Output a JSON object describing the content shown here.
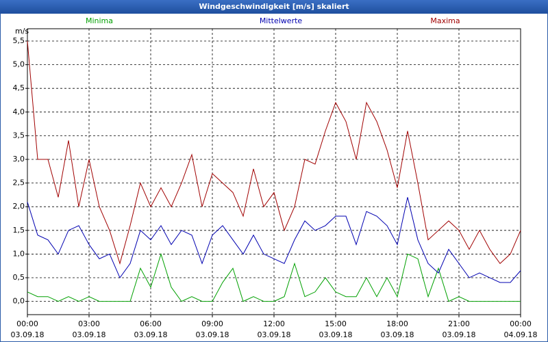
{
  "chart_data": {
    "type": "line",
    "title": "Windgeschwindigkeit [m/s] skaliert",
    "ylabel": "m/s",
    "x": [
      0,
      0.5,
      1,
      1.5,
      2,
      2.5,
      3,
      3.5,
      4,
      4.5,
      5,
      5.5,
      6,
      6.5,
      7,
      7.5,
      8,
      8.5,
      9,
      9.5,
      10,
      10.5,
      11,
      11.5,
      12,
      12.5,
      13,
      13.5,
      14,
      14.5,
      15,
      15.5,
      16,
      16.5,
      17,
      17.5,
      18,
      18.5,
      19,
      19.5,
      20,
      20.5,
      21,
      21.5,
      22,
      22.5,
      23,
      23.5,
      24
    ],
    "series": [
      {
        "name": "Minima",
        "color": "#00a000",
        "values": [
          0.2,
          0.1,
          0.1,
          0.0,
          0.1,
          0.0,
          0.1,
          0.0,
          0.0,
          0.0,
          0.0,
          0.7,
          0.3,
          1.0,
          0.3,
          0.0,
          0.1,
          0.0,
          0.0,
          0.4,
          0.7,
          0.0,
          0.1,
          0.0,
          0.0,
          0.1,
          0.8,
          0.1,
          0.2,
          0.5,
          0.2,
          0.1,
          0.1,
          0.5,
          0.1,
          0.5,
          0.1,
          1.0,
          0.9,
          0.1,
          0.7,
          0.0,
          0.1,
          0.0,
          0.0,
          0.0,
          0.0,
          0.0,
          0.0
        ]
      },
      {
        "name": "Mittelwerte",
        "color": "#0000b0",
        "values": [
          2.1,
          1.4,
          1.3,
          1.0,
          1.5,
          1.6,
          1.2,
          0.9,
          1.0,
          0.5,
          0.8,
          1.5,
          1.3,
          1.6,
          1.2,
          1.5,
          1.4,
          0.8,
          1.4,
          1.6,
          1.3,
          1.0,
          1.4,
          1.0,
          0.9,
          0.8,
          1.3,
          1.7,
          1.5,
          1.6,
          1.8,
          1.8,
          1.2,
          1.9,
          1.8,
          1.6,
          1.2,
          2.2,
          1.3,
          0.8,
          0.6,
          1.1,
          0.8,
          0.5,
          0.6,
          0.5,
          0.4,
          0.4,
          0.65
        ]
      },
      {
        "name": "Maxima",
        "color": "#a00000",
        "values": [
          5.5,
          3.0,
          3.0,
          2.2,
          3.4,
          2.0,
          3.0,
          2.0,
          1.5,
          0.8,
          1.6,
          2.5,
          2.0,
          2.4,
          2.0,
          2.5,
          3.1,
          2.0,
          2.7,
          2.5,
          2.3,
          1.8,
          2.8,
          2.0,
          2.3,
          1.5,
          2.0,
          3.0,
          2.9,
          3.6,
          4.2,
          3.8,
          3.0,
          4.2,
          3.8,
          3.2,
          2.4,
          3.6,
          2.5,
          1.3,
          1.5,
          1.7,
          1.5,
          1.1,
          1.5,
          1.1,
          0.8,
          1.0,
          1.5
        ]
      }
    ],
    "xlim": [
      0,
      24
    ],
    "xticks": [
      {
        "value": 0,
        "label": "00:00\n03.09.18"
      },
      {
        "value": 3,
        "label": "03:00\n03.09.18"
      },
      {
        "value": 6,
        "label": "06:00\n03.09.18"
      },
      {
        "value": 9,
        "label": "09:00\n03.09.18"
      },
      {
        "value": 12,
        "label": "12:00\n03.09.18"
      },
      {
        "value": 15,
        "label": "15:00\n03.09.18"
      },
      {
        "value": 18,
        "label": "18:00\n03.09.18"
      },
      {
        "value": 21,
        "label": "21:00\n03.09.18"
      },
      {
        "value": 24,
        "label": "00:00\n04.09.18"
      }
    ],
    "ylim": [
      -0.28,
      5.76
    ],
    "yticks": [
      {
        "value": 0,
        "label": "0,0"
      },
      {
        "value": 0.5,
        "label": "0,5"
      },
      {
        "value": 1,
        "label": "1,0"
      },
      {
        "value": 1.5,
        "label": "1,5"
      },
      {
        "value": 2,
        "label": "2,0"
      },
      {
        "value": 2.5,
        "label": "2,5"
      },
      {
        "value": 3,
        "label": "3,0"
      },
      {
        "value": 3.5,
        "label": "3,5"
      },
      {
        "value": 4,
        "label": "4,0"
      },
      {
        "value": 4.5,
        "label": "4,5"
      },
      {
        "value": 5,
        "label": "5,0"
      },
      {
        "value": 5.5,
        "label": "5,5"
      }
    ],
    "grid": true
  }
}
